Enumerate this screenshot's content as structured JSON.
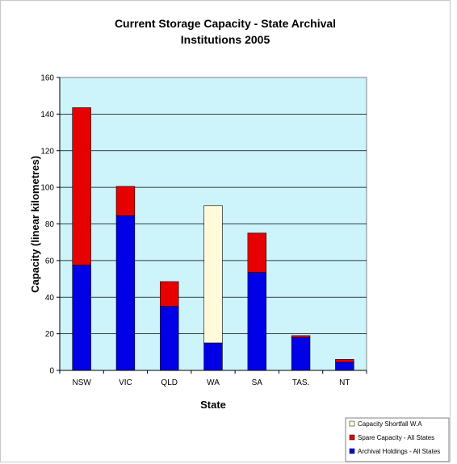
{
  "chart_data": {
    "type": "bar",
    "stacked": true,
    "title_lines": [
      "Current Storage Capacity - State Archival",
      "Institutions 2005"
    ],
    "xlabel": "State",
    "ylabel": "Capacity (linear kilometres)",
    "categories": [
      "NSW",
      "VIC",
      "QLD",
      "WA",
      "SA",
      "TAS.",
      "NT"
    ],
    "ylim": [
      0,
      160
    ],
    "yticks": [
      0,
      20,
      40,
      60,
      80,
      100,
      120,
      140,
      160
    ],
    "grid": true,
    "legend_position": "bottom-right",
    "plot_background": "#cdf3fb",
    "series": [
      {
        "name": "Archival Holdings - All States",
        "color": "#0000e6",
        "values": [
          57.5,
          84.5,
          35,
          15,
          53.5,
          18,
          4.5
        ]
      },
      {
        "name": "Spare Capacity - All States",
        "color": "#e60000",
        "values": [
          86,
          16,
          13.5,
          0,
          21.5,
          1,
          1.5
        ]
      },
      {
        "name": "Capacity Shortfall W.A",
        "color": "#fdfbd9",
        "values": [
          0,
          0,
          0,
          75,
          0,
          0,
          0
        ]
      }
    ],
    "legend_order": [
      "Capacity Shortfall W.A",
      "Spare Capacity - All States",
      "Archival Holdings - All States"
    ]
  }
}
